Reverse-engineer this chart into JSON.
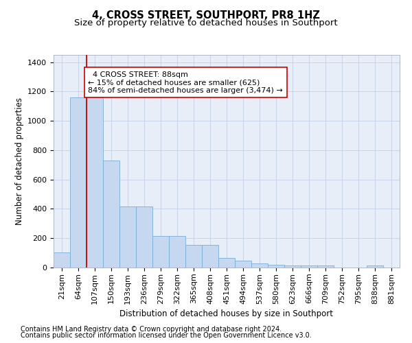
{
  "title": "4, CROSS STREET, SOUTHPORT, PR8 1HZ",
  "subtitle": "Size of property relative to detached houses in Southport",
  "xlabel": "Distribution of detached houses by size in Southport",
  "ylabel": "Number of detached properties",
  "footer_line1": "Contains HM Land Registry data © Crown copyright and database right 2024.",
  "footer_line2": "Contains public sector information licensed under the Open Government Licence v3.0.",
  "annotation_line1": "  4 CROSS STREET: 88sqm",
  "annotation_line2": "← 15% of detached houses are smaller (625)",
  "annotation_line3": "84% of semi-detached houses are larger (3,474) →",
  "bar_categories": [
    "21sqm",
    "64sqm",
    "107sqm",
    "150sqm",
    "193sqm",
    "236sqm",
    "279sqm",
    "322sqm",
    "365sqm",
    "408sqm",
    "451sqm",
    "494sqm",
    "537sqm",
    "580sqm",
    "623sqm",
    "666sqm",
    "709sqm",
    "752sqm",
    "795sqm",
    "838sqm",
    "881sqm"
  ],
  "bar_values": [
    105,
    1160,
    1160,
    730,
    415,
    415,
    215,
    215,
    155,
    155,
    65,
    45,
    28,
    20,
    15,
    15,
    15,
    2,
    2,
    15,
    2
  ],
  "bar_color": "#c5d8f0",
  "bar_edgecolor": "#7aadd4",
  "red_line_index": 1.5,
  "red_line_color": "#cc0000",
  "annotation_box_edgecolor": "#cc0000",
  "annotation_box_facecolor": "#ffffff",
  "ylim": [
    0,
    1450
  ],
  "yticks": [
    0,
    200,
    400,
    600,
    800,
    1000,
    1200,
    1400
  ],
  "background_color": "#ffffff",
  "plot_bg_color": "#e8eef8",
  "grid_color": "#c8d4e8",
  "title_fontsize": 10.5,
  "subtitle_fontsize": 9.5,
  "axis_label_fontsize": 8.5,
  "tick_fontsize": 8,
  "annotation_fontsize": 8,
  "footer_fontsize": 7
}
